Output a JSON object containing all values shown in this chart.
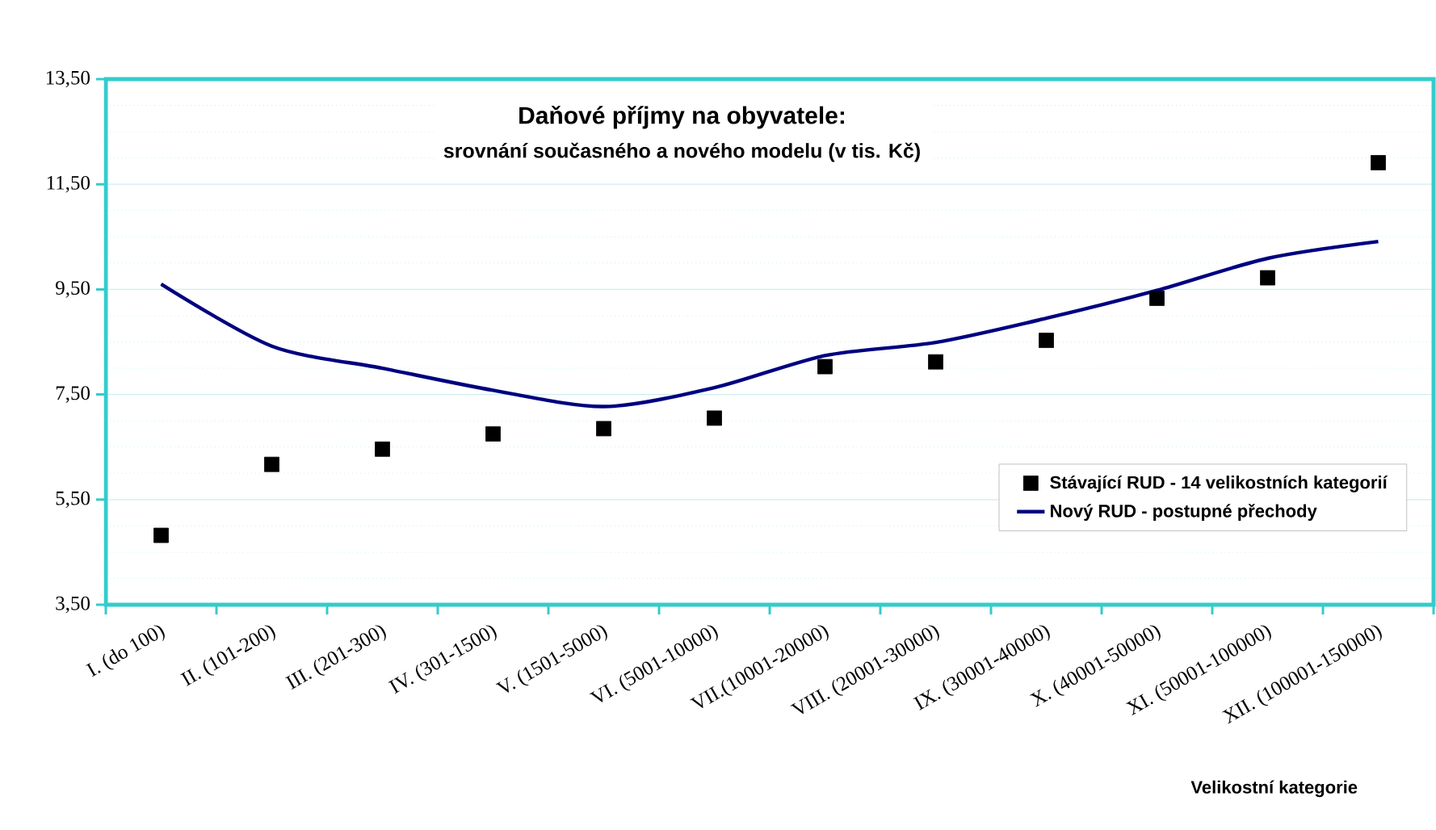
{
  "chart_data": {
    "type": "scatter",
    "title": "Daňové příjmy na obyvatele:",
    "subtitle": "srovnání současného a nového modelu (v tis. Kč)",
    "xlabel": "Velikostní kategorie",
    "categories": [
      "I. (do 100)",
      "II. (101-200)",
      "III. (201-300)",
      "IV. (301-1500)",
      "V. (1501-5000)",
      "VI. (5001-10000)",
      "VII.(10001-20000)",
      "VIII. (20001-30000)",
      "IX. (30001-40000)",
      "X. (40001-50000)",
      "XI. (50001-100000)",
      "XII. (100001-150000)"
    ],
    "series": [
      {
        "name": "Stávající RUD - 14 velikostních kategorií",
        "marker": "square",
        "color": "#000000",
        "values": [
          4.82,
          6.17,
          6.46,
          6.75,
          6.85,
          7.05,
          8.03,
          8.12,
          8.53,
          9.33,
          9.72,
          11.91
        ]
      },
      {
        "name": "Nový RUD - postupné přechody",
        "type": "line",
        "marker": "none",
        "color": "#000080",
        "values": [
          9.6,
          8.42,
          8.0,
          7.58,
          7.27,
          7.63,
          8.24,
          8.49,
          8.95,
          9.48,
          10.09,
          10.41
        ]
      }
    ],
    "ylim": [
      3.5,
      13.5
    ],
    "yticks": [
      {
        "value": 3.5,
        "label": "3,50"
      },
      {
        "value": 5.5,
        "label": "5,50"
      },
      {
        "value": 7.5,
        "label": "7,50"
      },
      {
        "value": 9.5,
        "label": "9,50"
      },
      {
        "value": 11.5,
        "label": "11,50"
      },
      {
        "value": 13.5,
        "label": "13,50"
      }
    ],
    "grid": "y",
    "legend": "bottom right"
  }
}
